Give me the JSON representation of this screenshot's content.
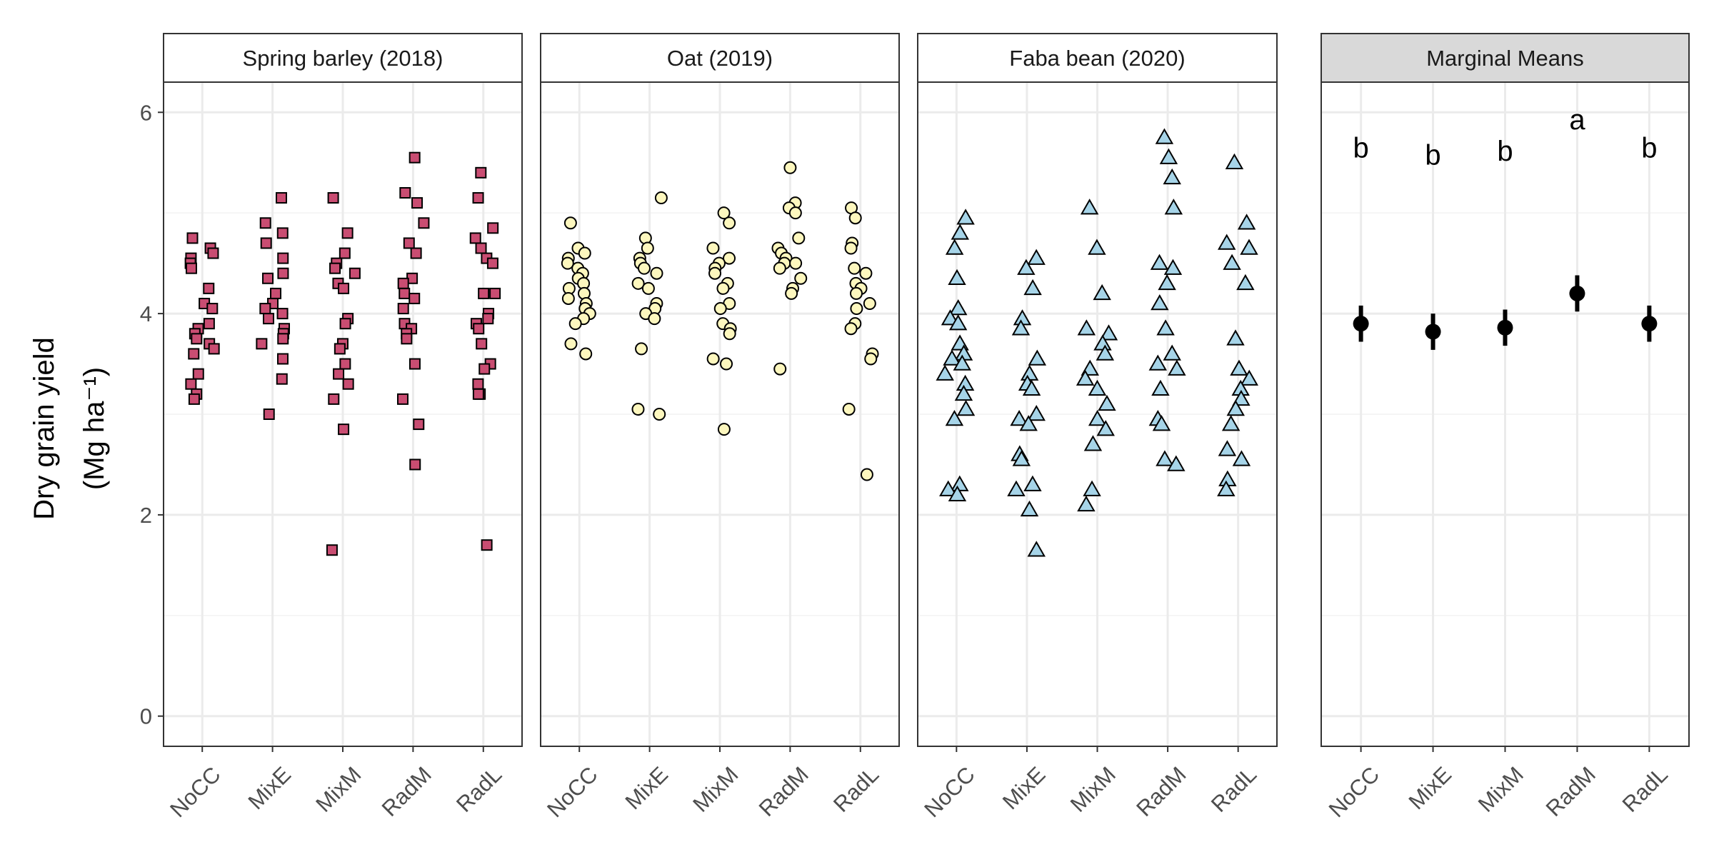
{
  "chart_data": {
    "type": "scatter",
    "ylabel_line1": "Dry grain yield",
    "ylabel_line2": "(Mg  ha⁻¹)",
    "ylim": [
      -0.3,
      6.3
    ],
    "yticks": [
      0,
      2,
      4,
      6
    ],
    "grid": true,
    "categories": [
      "NoCC",
      "MixE",
      "MixM",
      "RadM",
      "RadL"
    ],
    "panels": [
      {
        "title": "Spring barley (2018)",
        "marker": "square",
        "fill": "#c94d72",
        "values": [
          [
            4.75,
            4.65,
            4.6,
            4.55,
            4.5,
            4.45,
            4.25,
            4.1,
            4.05,
            3.9,
            3.85,
            3.8,
            3.75,
            3.7,
            3.65,
            3.6,
            3.4,
            3.3,
            3.2,
            3.15
          ],
          [
            5.15,
            4.9,
            4.8,
            4.7,
            4.55,
            4.4,
            4.35,
            4.2,
            4.1,
            4.05,
            4.0,
            3.95,
            3.85,
            3.8,
            3.75,
            3.7,
            3.55,
            3.35,
            3.0
          ],
          [
            5.15,
            4.8,
            4.6,
            4.5,
            4.45,
            4.4,
            4.3,
            4.25,
            3.95,
            3.9,
            3.7,
            3.65,
            3.5,
            3.4,
            3.3,
            3.15,
            2.85,
            1.65
          ],
          [
            5.55,
            5.2,
            5.1,
            4.9,
            4.7,
            4.6,
            4.35,
            4.3,
            4.2,
            4.15,
            4.05,
            3.9,
            3.85,
            3.8,
            3.75,
            3.5,
            3.15,
            2.9,
            2.5
          ],
          [
            5.4,
            5.15,
            4.85,
            4.75,
            4.65,
            4.55,
            4.5,
            4.2,
            4.2,
            4.0,
            3.95,
            3.9,
            3.85,
            3.7,
            3.5,
            3.45,
            3.3,
            3.2,
            3.2,
            1.7
          ]
        ]
      },
      {
        "title": "Oat (2019)",
        "marker": "circle",
        "fill": "#fdf7be",
        "values": [
          [
            4.9,
            4.65,
            4.6,
            4.55,
            4.5,
            4.45,
            4.4,
            4.35,
            4.3,
            4.25,
            4.2,
            4.15,
            4.1,
            4.05,
            4.0,
            3.95,
            3.9,
            3.7,
            3.6
          ],
          [
            5.15,
            4.75,
            4.65,
            4.55,
            4.5,
            4.45,
            4.4,
            4.3,
            4.25,
            4.1,
            4.05,
            4.0,
            3.95,
            3.65,
            3.05,
            3.0
          ],
          [
            5.0,
            4.9,
            4.65,
            4.55,
            4.5,
            4.45,
            4.4,
            4.3,
            4.25,
            4.1,
            4.05,
            3.9,
            3.85,
            3.8,
            3.55,
            3.5,
            2.85
          ],
          [
            5.45,
            5.1,
            5.05,
            5.0,
            4.75,
            4.65,
            4.6,
            4.55,
            4.5,
            4.5,
            4.45,
            4.35,
            4.25,
            4.2,
            3.45
          ],
          [
            5.05,
            4.95,
            4.7,
            4.65,
            4.45,
            4.4,
            4.3,
            4.25,
            4.2,
            4.1,
            4.05,
            3.9,
            3.85,
            3.6,
            3.55,
            3.05,
            2.4
          ]
        ]
      },
      {
        "title": "Faba bean (2020)",
        "marker": "triangle",
        "fill": "#a6d4e8",
        "values": [
          [
            4.95,
            4.8,
            4.65,
            4.35,
            4.05,
            3.95,
            3.9,
            3.7,
            3.6,
            3.55,
            3.5,
            3.4,
            3.3,
            3.2,
            3.05,
            2.95,
            2.3,
            2.25,
            2.2
          ],
          [
            4.55,
            4.45,
            4.25,
            3.95,
            3.85,
            3.55,
            3.4,
            3.3,
            3.25,
            3.0,
            2.95,
            2.9,
            2.6,
            2.55,
            2.3,
            2.25,
            2.05,
            1.65
          ],
          [
            5.05,
            4.65,
            4.2,
            3.85,
            3.8,
            3.7,
            3.6,
            3.45,
            3.35,
            3.25,
            3.1,
            2.95,
            2.85,
            2.7,
            2.25,
            2.1
          ],
          [
            5.75,
            5.55,
            5.35,
            5.05,
            4.5,
            4.45,
            4.3,
            4.1,
            3.85,
            3.6,
            3.5,
            3.45,
            3.25,
            2.95,
            2.9,
            2.55,
            2.5
          ],
          [
            5.5,
            4.9,
            4.7,
            4.65,
            4.5,
            4.3,
            3.75,
            3.45,
            3.35,
            3.25,
            3.15,
            3.05,
            2.9,
            2.65,
            2.55,
            2.35,
            2.25
          ]
        ]
      }
    ],
    "marginal": {
      "title": "Marginal Means",
      "means": [
        3.9,
        3.82,
        3.86,
        4.2,
        3.9
      ],
      "lower": [
        3.72,
        3.64,
        3.68,
        4.02,
        3.72
      ],
      "upper": [
        4.08,
        4.0,
        4.04,
        4.38,
        4.08
      ],
      "letters": [
        "b",
        "b",
        "b",
        "a",
        "b"
      ],
      "letter_y": [
        5.65,
        5.58,
        5.62,
        5.93,
        5.65
      ]
    }
  }
}
